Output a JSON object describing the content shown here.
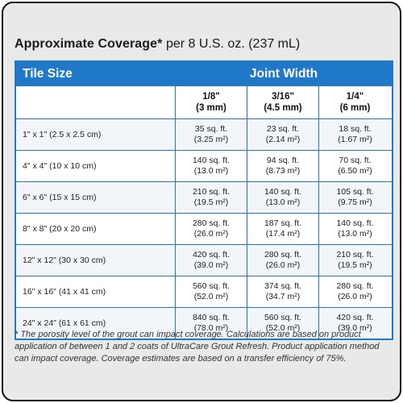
{
  "title": {
    "bold": "Approximate Coverage*",
    "rest": " per 8 U.S. oz. (237 mL)"
  },
  "table": {
    "header": {
      "col1": "Tile Size",
      "col2": "Joint Width"
    },
    "columns": [
      {
        "label": "1/8\"",
        "metric": "(3 mm)"
      },
      {
        "label": "3/16\"",
        "metric": "(4.5 mm)"
      },
      {
        "label": "1/4\"",
        "metric": "(6 mm)"
      }
    ],
    "rows": [
      {
        "size": "1\" x 1\" (2.5 x 2.5 cm)",
        "values": [
          {
            "sqft": "35 sq. ft.",
            "sqm": "(3.25 m²)"
          },
          {
            "sqft": "23 sq. ft.",
            "sqm": "(2.14 m²)"
          },
          {
            "sqft": "18 sq. ft.",
            "sqm": "(1.67 m²)"
          }
        ]
      },
      {
        "size": "4\" x 4\" (10 x 10 cm)",
        "values": [
          {
            "sqft": "140 sq. ft.",
            "sqm": "(13.0 m²)"
          },
          {
            "sqft": "94 sq. ft.",
            "sqm": "(8.73 m²)"
          },
          {
            "sqft": "70 sq. ft.",
            "sqm": "(6.50 m²)"
          }
        ]
      },
      {
        "size": "6\" x 6\" (15 x 15 cm)",
        "values": [
          {
            "sqft": "210 sq. ft.",
            "sqm": "(19.5 m²)"
          },
          {
            "sqft": "140 sq. ft.",
            "sqm": "(13.0 m²)"
          },
          {
            "sqft": "105 sq. ft.",
            "sqm": "(9.75 m²)"
          }
        ]
      },
      {
        "size": "8\" x 8\" (20 x 20 cm)",
        "values": [
          {
            "sqft": "280 sq. ft.",
            "sqm": "(26.0 m²)"
          },
          {
            "sqft": "187 sq. ft.",
            "sqm": "(17.4 m²)"
          },
          {
            "sqft": "140 sq. ft.",
            "sqm": "(13.0 m²)"
          }
        ]
      },
      {
        "size": "12\" x 12\" (30 x 30 cm)",
        "values": [
          {
            "sqft": "420 sq. ft.",
            "sqm": "(39.0 m²)"
          },
          {
            "sqft": "280 sq. ft.",
            "sqm": "(26.0 m²)"
          },
          {
            "sqft": "210 sq. ft.",
            "sqm": "(19.5 m²)"
          }
        ]
      },
      {
        "size": "16\" x 16\" (41 x 41 cm)",
        "values": [
          {
            "sqft": "560 sq. ft.",
            "sqm": "(52.0 m²)"
          },
          {
            "sqft": "374 sq. ft.",
            "sqm": "(34.7 m²)"
          },
          {
            "sqft": "280 sq. ft.",
            "sqm": "(26.0 m²)"
          }
        ]
      },
      {
        "size": "24\" x 24\" (61 x 61 cm)",
        "values": [
          {
            "sqft": "840 sq. ft.",
            "sqm": "(78.0 m²)"
          },
          {
            "sqft": "560 sq. ft.",
            "sqm": "(52.0 m²)"
          },
          {
            "sqft": "420 sq. ft.",
            "sqm": "(39.0 m²)"
          }
        ]
      }
    ]
  },
  "footnote": "* The porosity level of the grout can impact coverage. Calculations are based on product application of between 1 and 2 coats of UltraCare Grout Refresh. Product application method can impact coverage. Coverage estimates are based on a transfer efficiency of 75%.",
  "colors": {
    "accent": "#1f78c8",
    "card_bg": "#e9e9e9"
  }
}
